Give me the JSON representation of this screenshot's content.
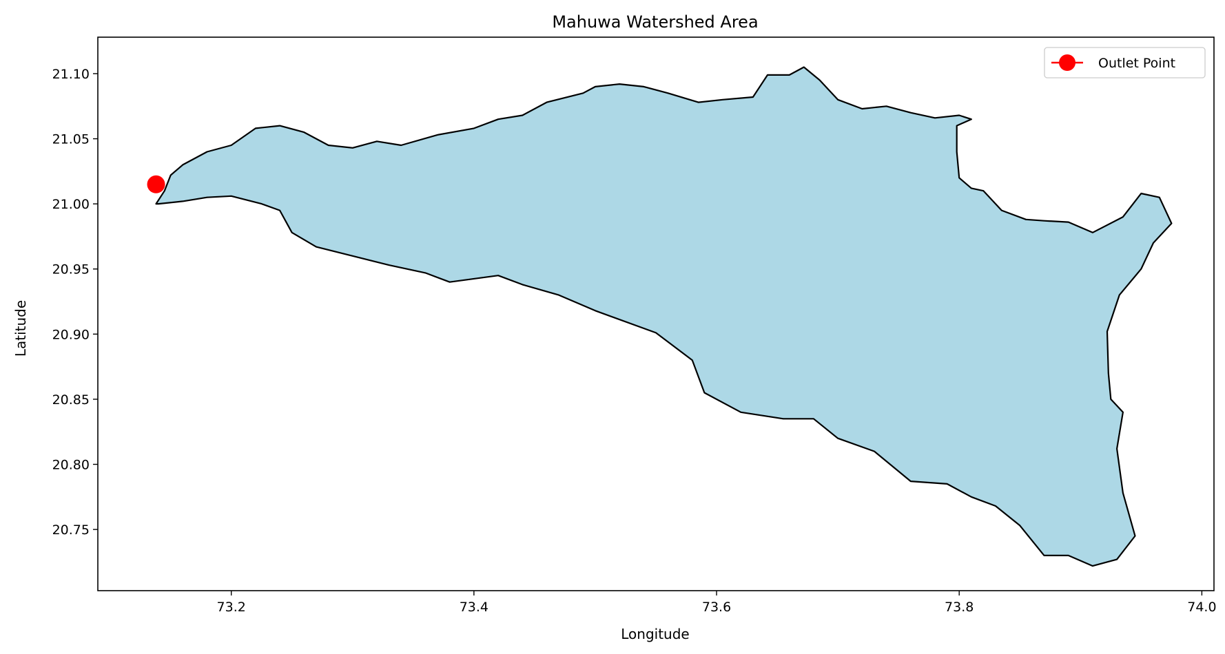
{
  "chart_data": {
    "type": "map",
    "title": "Mahuwa Watershed Area",
    "xlabel": "Longitude",
    "ylabel": "Latitude",
    "xlim": [
      73.09,
      74.01
    ],
    "ylim": [
      20.703,
      21.128
    ],
    "x_ticks": [
      {
        "value": 73.2,
        "label": "73.2"
      },
      {
        "value": 73.4,
        "label": "73.4"
      },
      {
        "value": 73.6,
        "label": "73.6"
      },
      {
        "value": 73.8,
        "label": "73.8"
      },
      {
        "value": 74.0,
        "label": "74.0"
      }
    ],
    "y_ticks": [
      {
        "value": 20.75,
        "label": "20.75"
      },
      {
        "value": 20.8,
        "label": "20.80"
      },
      {
        "value": 20.85,
        "label": "20.85"
      },
      {
        "value": 20.9,
        "label": "20.90"
      },
      {
        "value": 20.95,
        "label": "20.95"
      },
      {
        "value": 21.0,
        "label": "21.00"
      },
      {
        "value": 21.05,
        "label": "21.05"
      },
      {
        "value": 21.1,
        "label": "21.10"
      }
    ],
    "grid": false,
    "legend": {
      "position": "upper right",
      "entries": [
        "Outlet Point"
      ]
    },
    "watershed": {
      "fill": "#add8e6",
      "edge": "#000000",
      "boundary": [
        [
          73.14,
          21.0
        ],
        [
          73.16,
          21.002
        ],
        [
          73.18,
          21.005
        ],
        [
          73.2,
          21.006
        ],
        [
          73.225,
          21.0
        ],
        [
          73.24,
          20.995
        ],
        [
          73.25,
          20.978
        ],
        [
          73.27,
          20.967
        ],
        [
          73.3,
          20.96
        ],
        [
          73.33,
          20.953
        ],
        [
          73.36,
          20.947
        ],
        [
          73.38,
          20.94
        ],
        [
          73.42,
          20.945
        ],
        [
          73.44,
          20.938
        ],
        [
          73.47,
          20.93
        ],
        [
          73.5,
          20.918
        ],
        [
          73.55,
          20.901
        ],
        [
          73.58,
          20.88
        ],
        [
          73.59,
          20.855
        ],
        [
          73.62,
          20.84
        ],
        [
          73.655,
          20.835
        ],
        [
          73.68,
          20.835
        ],
        [
          73.7,
          20.82
        ],
        [
          73.73,
          20.81
        ],
        [
          73.76,
          20.787
        ],
        [
          73.79,
          20.785
        ],
        [
          73.81,
          20.775
        ],
        [
          73.83,
          20.768
        ],
        [
          73.85,
          20.753
        ],
        [
          73.87,
          20.73
        ],
        [
          73.89,
          20.73
        ],
        [
          73.91,
          20.722
        ],
        [
          73.93,
          20.727
        ],
        [
          73.945,
          20.745
        ],
        [
          73.935,
          20.778
        ],
        [
          73.93,
          20.812
        ],
        [
          73.935,
          20.84
        ],
        [
          73.925,
          20.85
        ],
        [
          73.923,
          20.87
        ],
        [
          73.922,
          20.902
        ],
        [
          73.932,
          20.93
        ],
        [
          73.95,
          20.95
        ],
        [
          73.96,
          20.97
        ],
        [
          73.975,
          20.985
        ],
        [
          73.965,
          21.005
        ],
        [
          73.95,
          21.008
        ],
        [
          73.935,
          20.99
        ],
        [
          73.91,
          20.978
        ],
        [
          73.89,
          20.986
        ],
        [
          73.87,
          20.987
        ],
        [
          73.855,
          20.988
        ],
        [
          73.835,
          20.995
        ],
        [
          73.82,
          21.01
        ],
        [
          73.81,
          21.012
        ],
        [
          73.8,
          21.02
        ],
        [
          73.798,
          21.04
        ],
        [
          73.798,
          21.06
        ],
        [
          73.81,
          21.065
        ],
        [
          73.8,
          21.068
        ],
        [
          73.78,
          21.066
        ],
        [
          73.76,
          21.07
        ],
        [
          73.74,
          21.075
        ],
        [
          73.72,
          21.073
        ],
        [
          73.7,
          21.08
        ],
        [
          73.685,
          21.095
        ],
        [
          73.672,
          21.105
        ],
        [
          73.66,
          21.099
        ],
        [
          73.642,
          21.099
        ],
        [
          73.63,
          21.082
        ],
        [
          73.605,
          21.08
        ],
        [
          73.585,
          21.078
        ],
        [
          73.56,
          21.085
        ],
        [
          73.54,
          21.09
        ],
        [
          73.52,
          21.092
        ],
        [
          73.5,
          21.09
        ],
        [
          73.49,
          21.085
        ],
        [
          73.46,
          21.078
        ],
        [
          73.44,
          21.068
        ],
        [
          73.42,
          21.065
        ],
        [
          73.4,
          21.058
        ],
        [
          73.37,
          21.053
        ],
        [
          73.34,
          21.045
        ],
        [
          73.32,
          21.048
        ],
        [
          73.3,
          21.043
        ],
        [
          73.28,
          21.045
        ],
        [
          73.26,
          21.055
        ],
        [
          73.24,
          21.06
        ],
        [
          73.22,
          21.058
        ],
        [
          73.2,
          21.045
        ],
        [
          73.18,
          21.04
        ],
        [
          73.16,
          21.03
        ],
        [
          73.15,
          21.022
        ],
        [
          73.145,
          21.01
        ],
        [
          73.138,
          21.0
        ]
      ]
    },
    "outlet_point": {
      "lon": 73.138,
      "lat": 21.015,
      "color": "#ff0000",
      "label": "Outlet Point"
    }
  }
}
